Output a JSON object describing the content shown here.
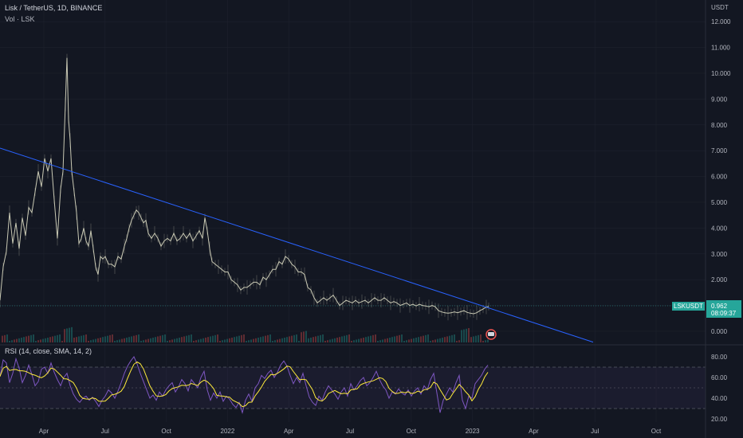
{
  "header": {
    "title": "Lisk / TetherUS, 1D, BINANCE",
    "volume_label": "Vol · LSK",
    "rsi_label": "RSI (14, close, SMA, 14, 2)",
    "currency": "USDT"
  },
  "price_badge": {
    "symbol": "LSKUSDT",
    "price": "0.962",
    "countdown": "08:09:37"
  },
  "colors": {
    "background": "#131722",
    "candle": "#c9c9b4",
    "trendline": "#2962ff",
    "rsi_line": "#7e57c2",
    "rsi_ma": "#ffeb3b",
    "badge": "#26a69a"
  },
  "chart_data": {
    "type": "candlestick",
    "price_axis": {
      "ticks": [
        "12.000",
        "11.000",
        "10.000",
        "9.000",
        "8.000",
        "7.000",
        "6.000",
        "5.000",
        "4.000",
        "3.000",
        "2.000",
        "1.000",
        "0.000"
      ],
      "ylim": [
        0,
        12
      ]
    },
    "rsi_axis": {
      "ticks": [
        "80.00",
        "60.00",
        "40.00",
        "20.00"
      ],
      "ylim": [
        20,
        80
      ],
      "levels": [
        70,
        50,
        30
      ]
    },
    "time_axis": {
      "ticks": [
        "Apr",
        "Jul",
        "Oct",
        "2022",
        "Apr",
        "Jul",
        "Oct",
        "2023",
        "Apr",
        "Jul",
        "Oct"
      ]
    },
    "price_path": [
      [
        0,
        1.2
      ],
      [
        4,
        2.5
      ],
      [
        8,
        3.1
      ],
      [
        12,
        4.6
      ],
      [
        16,
        3.4
      ],
      [
        20,
        4.2
      ],
      [
        24,
        3.2
      ],
      [
        28,
        4.4
      ],
      [
        32,
        3.7
      ],
      [
        36,
        4.8
      ],
      [
        40,
        4.6
      ],
      [
        44,
        5.4
      ],
      [
        48,
        6.2
      ],
      [
        52,
        5.6
      ],
      [
        56,
        6.7
      ],
      [
        60,
        6.2
      ],
      [
        64,
        6.7
      ],
      [
        68,
        5.1
      ],
      [
        72,
        3.6
      ],
      [
        76,
        5.5
      ],
      [
        79,
        6.2
      ],
      [
        82,
        8.8
      ],
      [
        84,
        10.6
      ],
      [
        86,
        8.2
      ],
      [
        88,
        7.4
      ],
      [
        90,
        6.2
      ],
      [
        93,
        5.4
      ],
      [
        96,
        4.6
      ],
      [
        99,
        3.4
      ],
      [
        102,
        3.6
      ],
      [
        105,
        4.0
      ],
      [
        108,
        3.5
      ],
      [
        111,
        3.3
      ],
      [
        114,
        3.9
      ],
      [
        117,
        3.2
      ],
      [
        120,
        2.5
      ],
      [
        123,
        2.2
      ],
      [
        126,
        2.9
      ],
      [
        129,
        2.8
      ],
      [
        132,
        2.9
      ],
      [
        136,
        2.6
      ],
      [
        140,
        2.6
      ],
      [
        144,
        2.5
      ],
      [
        148,
        2.9
      ],
      [
        152,
        2.8
      ],
      [
        156,
        3.3
      ],
      [
        159,
        3.6
      ],
      [
        162,
        4.0
      ],
      [
        165,
        4.3
      ],
      [
        168,
        4.5
      ],
      [
        171,
        4.7
      ],
      [
        174,
        4.6
      ],
      [
        177,
        4.4
      ],
      [
        180,
        4.2
      ],
      [
        183,
        4.3
      ],
      [
        186,
        3.8
      ],
      [
        190,
        3.6
      ],
      [
        194,
        3.8
      ],
      [
        198,
        3.6
      ],
      [
        202,
        3.3
      ],
      [
        206,
        3.5
      ],
      [
        210,
        3.6
      ],
      [
        214,
        3.5
      ],
      [
        218,
        3.8
      ],
      [
        222,
        3.5
      ],
      [
        226,
        3.6
      ],
      [
        230,
        3.8
      ],
      [
        234,
        3.6
      ],
      [
        238,
        3.8
      ],
      [
        242,
        3.5
      ],
      [
        246,
        3.7
      ],
      [
        250,
        3.9
      ],
      [
        254,
        3.6
      ],
      [
        257,
        4.4
      ],
      [
        260,
        3.9
      ],
      [
        263,
        3.2
      ],
      [
        266,
        2.7
      ],
      [
        270,
        2.6
      ],
      [
        274,
        2.5
      ],
      [
        278,
        2.4
      ],
      [
        282,
        2.3
      ],
      [
        286,
        2.3
      ],
      [
        290,
        2.0
      ],
      [
        294,
        1.9
      ],
      [
        298,
        1.8
      ],
      [
        302,
        1.6
      ],
      [
        306,
        1.7
      ],
      [
        310,
        1.7
      ],
      [
        314,
        1.8
      ],
      [
        318,
        1.9
      ],
      [
        322,
        1.9
      ],
      [
        326,
        1.8
      ],
      [
        330,
        2.1
      ],
      [
        334,
        2.0
      ],
      [
        338,
        2.2
      ],
      [
        342,
        2.4
      ],
      [
        346,
        2.4
      ],
      [
        350,
        2.7
      ],
      [
        354,
        2.6
      ],
      [
        358,
        2.9
      ],
      [
        362,
        2.8
      ],
      [
        366,
        2.6
      ],
      [
        370,
        2.5
      ],
      [
        374,
        2.3
      ],
      [
        378,
        2.3
      ],
      [
        382,
        2.2
      ],
      [
        386,
        1.7
      ],
      [
        390,
        1.6
      ],
      [
        394,
        1.3
      ],
      [
        398,
        1.1
      ],
      [
        402,
        1.2
      ],
      [
        406,
        1.3
      ],
      [
        410,
        1.2
      ],
      [
        414,
        1.3
      ],
      [
        418,
        1.4
      ],
      [
        422,
        1.2
      ],
      [
        426,
        1.0
      ],
      [
        430,
        1.1
      ],
      [
        434,
        1.2
      ],
      [
        438,
        1.15
      ],
      [
        442,
        1.1
      ],
      [
        446,
        1.2
      ],
      [
        450,
        1.1
      ],
      [
        454,
        1.15
      ],
      [
        458,
        1.2
      ],
      [
        462,
        1.1
      ],
      [
        466,
        1.2
      ],
      [
        470,
        1.3
      ],
      [
        474,
        1.2
      ],
      [
        478,
        1.2
      ],
      [
        482,
        1.3
      ],
      [
        486,
        1.2
      ],
      [
        490,
        1.1
      ],
      [
        494,
        1.15
      ],
      [
        498,
        1.1
      ],
      [
        502,
        1.0
      ],
      [
        506,
        1.05
      ],
      [
        510,
        1.1
      ],
      [
        514,
        1.0
      ],
      [
        518,
        1.05
      ],
      [
        522,
        0.98
      ],
      [
        526,
        1.05
      ],
      [
        530,
        1.0
      ],
      [
        534,
        0.98
      ],
      [
        538,
        0.95
      ],
      [
        542,
        1.0
      ],
      [
        546,
        0.95
      ],
      [
        550,
        0.8
      ],
      [
        554,
        0.75
      ],
      [
        558,
        0.72
      ],
      [
        562,
        0.7
      ],
      [
        566,
        0.72
      ],
      [
        570,
        0.75
      ],
      [
        574,
        0.72
      ],
      [
        578,
        0.76
      ],
      [
        582,
        0.8
      ],
      [
        586,
        0.73
      ],
      [
        590,
        0.7
      ],
      [
        594,
        0.68
      ],
      [
        598,
        0.72
      ],
      [
        602,
        0.8
      ],
      [
        606,
        0.86
      ],
      [
        610,
        0.94
      ],
      [
        613,
        0.96
      ]
    ],
    "trendline": {
      "from": [
        0,
        7.1
      ],
      "to": [
        744,
        -0.42
      ]
    },
    "rsi_path": [
      [
        0,
        61
      ],
      [
        4,
        77
      ],
      [
        8,
        74
      ],
      [
        12,
        55
      ],
      [
        16,
        64
      ],
      [
        20,
        78
      ],
      [
        24,
        69
      ],
      [
        28,
        55
      ],
      [
        32,
        62
      ],
      [
        36,
        72
      ],
      [
        40,
        63
      ],
      [
        44,
        52
      ],
      [
        48,
        56
      ],
      [
        52,
        68
      ],
      [
        56,
        70
      ],
      [
        60,
        64
      ],
      [
        64,
        74
      ],
      [
        68,
        65
      ],
      [
        72,
        58
      ],
      [
        76,
        52
      ],
      [
        80,
        60
      ],
      [
        84,
        64
      ],
      [
        88,
        52
      ],
      [
        92,
        44
      ],
      [
        96,
        39
      ],
      [
        100,
        36
      ],
      [
        104,
        40
      ],
      [
        108,
        42
      ],
      [
        112,
        38
      ],
      [
        116,
        41
      ],
      [
        120,
        37
      ],
      [
        124,
        32
      ],
      [
        128,
        38
      ],
      [
        132,
        42
      ],
      [
        136,
        48
      ],
      [
        140,
        45
      ],
      [
        144,
        40
      ],
      [
        148,
        47
      ],
      [
        152,
        55
      ],
      [
        156,
        64
      ],
      [
        160,
        71
      ],
      [
        164,
        76
      ],
      [
        168,
        80
      ],
      [
        172,
        73
      ],
      [
        176,
        64
      ],
      [
        180,
        56
      ],
      [
        184,
        48
      ],
      [
        188,
        40
      ],
      [
        192,
        43
      ],
      [
        196,
        38
      ],
      [
        200,
        46
      ],
      [
        204,
        42
      ],
      [
        208,
        48
      ],
      [
        212,
        52
      ],
      [
        216,
        55
      ],
      [
        220,
        46
      ],
      [
        224,
        51
      ],
      [
        228,
        58
      ],
      [
        232,
        54
      ],
      [
        236,
        47
      ],
      [
        240,
        58
      ],
      [
        244,
        54
      ],
      [
        248,
        50
      ],
      [
        252,
        60
      ],
      [
        256,
        66
      ],
      [
        260,
        48
      ],
      [
        264,
        38
      ],
      [
        268,
        45
      ],
      [
        272,
        40
      ],
      [
        276,
        46
      ],
      [
        280,
        37
      ],
      [
        284,
        42
      ],
      [
        288,
        39
      ],
      [
        292,
        34
      ],
      [
        296,
        31
      ],
      [
        300,
        36
      ],
      [
        304,
        26
      ],
      [
        308,
        38
      ],
      [
        312,
        44
      ],
      [
        316,
        37
      ],
      [
        320,
        50
      ],
      [
        324,
        54
      ],
      [
        328,
        62
      ],
      [
        332,
        59
      ],
      [
        336,
        64
      ],
      [
        340,
        67
      ],
      [
        344,
        60
      ],
      [
        348,
        65
      ],
      [
        352,
        72
      ],
      [
        356,
        76
      ],
      [
        360,
        71
      ],
      [
        364,
        62
      ],
      [
        368,
        54
      ],
      [
        372,
        60
      ],
      [
        376,
        55
      ],
      [
        380,
        64
      ],
      [
        384,
        52
      ],
      [
        388,
        41
      ],
      [
        392,
        36
      ],
      [
        396,
        33
      ],
      [
        400,
        42
      ],
      [
        404,
        38
      ],
      [
        408,
        46
      ],
      [
        412,
        52
      ],
      [
        416,
        48
      ],
      [
        420,
        44
      ],
      [
        424,
        39
      ],
      [
        428,
        46
      ],
      [
        432,
        50
      ],
      [
        436,
        42
      ],
      [
        440,
        54
      ],
      [
        444,
        48
      ],
      [
        448,
        52
      ],
      [
        452,
        57
      ],
      [
        456,
        60
      ],
      [
        460,
        52
      ],
      [
        464,
        55
      ],
      [
        468,
        60
      ],
      [
        472,
        66
      ],
      [
        476,
        58
      ],
      [
        480,
        52
      ],
      [
        484,
        48
      ],
      [
        488,
        40
      ],
      [
        492,
        46
      ],
      [
        496,
        44
      ],
      [
        500,
        49
      ],
      [
        504,
        45
      ],
      [
        508,
        43
      ],
      [
        512,
        48
      ],
      [
        516,
        42
      ],
      [
        520,
        47
      ],
      [
        524,
        50
      ],
      [
        528,
        44
      ],
      [
        532,
        52
      ],
      [
        536,
        48
      ],
      [
        540,
        58
      ],
      [
        544,
        64
      ],
      [
        548,
        45
      ],
      [
        552,
        26
      ],
      [
        556,
        38
      ],
      [
        560,
        44
      ],
      [
        564,
        50
      ],
      [
        568,
        46
      ],
      [
        572,
        55
      ],
      [
        576,
        62
      ],
      [
        580,
        38
      ],
      [
        584,
        30
      ],
      [
        588,
        42
      ],
      [
        592,
        40
      ],
      [
        596,
        54
      ],
      [
        600,
        58
      ],
      [
        604,
        62
      ],
      [
        608,
        68
      ],
      [
        612,
        72
      ]
    ]
  }
}
